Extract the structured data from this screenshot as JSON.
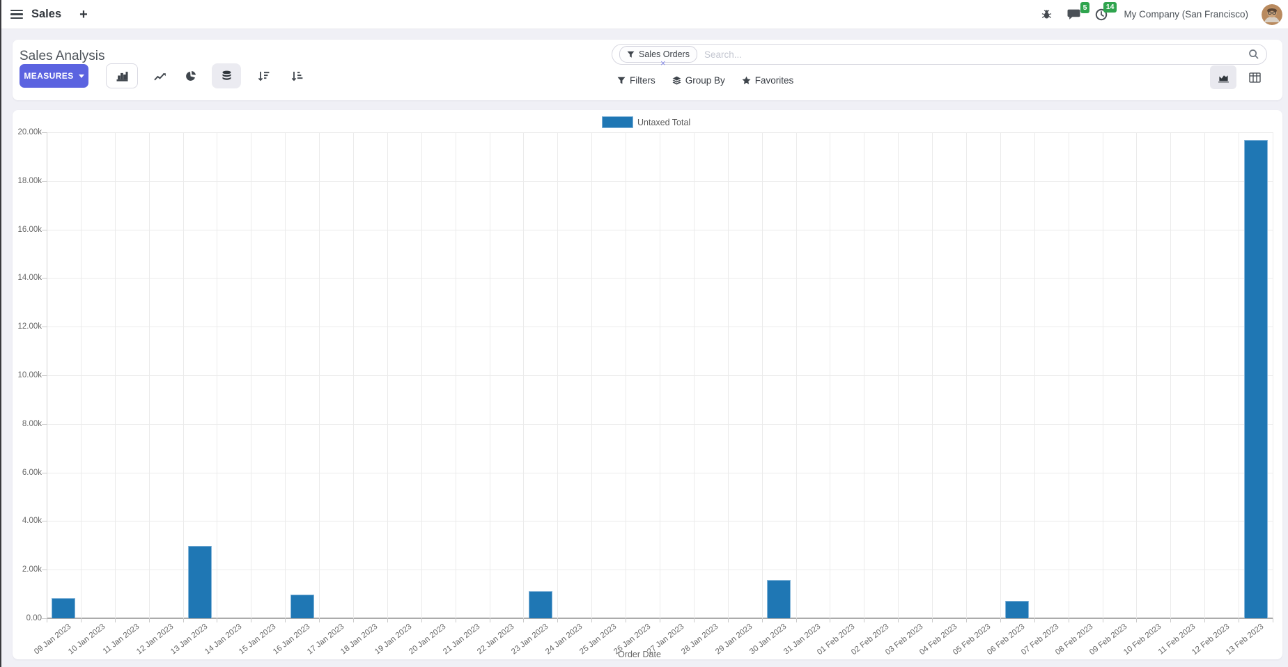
{
  "navbar": {
    "app_title": "Sales",
    "plus": "+",
    "message_badge": "5",
    "activity_badge": "14",
    "company": "My Company (San Francisco)"
  },
  "control_panel": {
    "title": "Sales Analysis",
    "measures_label": "MEASURES",
    "search": {
      "facet_label": "Sales Orders",
      "facet_remove": "×",
      "placeholder": "Search..."
    },
    "menus": {
      "filters": "Filters",
      "group_by": "Group By",
      "favorites": "Favorites"
    }
  },
  "chart_data": {
    "type": "bar",
    "title": "",
    "xlabel": "Order Date",
    "ylabel": "",
    "legend_position": "top",
    "grid": true,
    "legend": [
      {
        "label": "Untaxed Total",
        "color": "#1f77b4"
      }
    ],
    "categories": [
      "09 Jan 2023",
      "10 Jan 2023",
      "11 Jan 2023",
      "12 Jan 2023",
      "13 Jan 2023",
      "14 Jan 2023",
      "15 Jan 2023",
      "16 Jan 2023",
      "17 Jan 2023",
      "18 Jan 2023",
      "19 Jan 2023",
      "20 Jan 2023",
      "21 Jan 2023",
      "22 Jan 2023",
      "23 Jan 2023",
      "24 Jan 2023",
      "25 Jan 2023",
      "26 Jan 2023",
      "27 Jan 2023",
      "28 Jan 2023",
      "29 Jan 2023",
      "30 Jan 2023",
      "31 Jan 2023",
      "01 Feb 2023",
      "02 Feb 2023",
      "03 Feb 2023",
      "04 Feb 2023",
      "05 Feb 2023",
      "06 Feb 2023",
      "07 Feb 2023",
      "08 Feb 2023",
      "09 Feb 2023",
      "10 Feb 2023",
      "11 Feb 2023",
      "12 Feb 2023",
      "13 Feb 2023"
    ],
    "series": [
      {
        "name": "Untaxed Total",
        "values": [
          800,
          0,
          0,
          0,
          2940,
          0,
          0,
          940,
          0,
          0,
          0,
          0,
          0,
          0,
          1100,
          0,
          0,
          0,
          0,
          0,
          0,
          1550,
          0,
          0,
          0,
          0,
          0,
          0,
          680,
          0,
          0,
          0,
          0,
          0,
          0,
          19650
        ]
      }
    ],
    "ylim": [
      0,
      20000
    ],
    "ytick_step": 2000,
    "ytick_labels": [
      "0.00",
      "2.00k",
      "4.00k",
      "6.00k",
      "8.00k",
      "10.00k",
      "12.00k",
      "14.00k",
      "16.00k",
      "18.00k",
      "20.00k"
    ],
    "bar_color": "#1f77b4",
    "bar_border_color": "#86b6da"
  }
}
